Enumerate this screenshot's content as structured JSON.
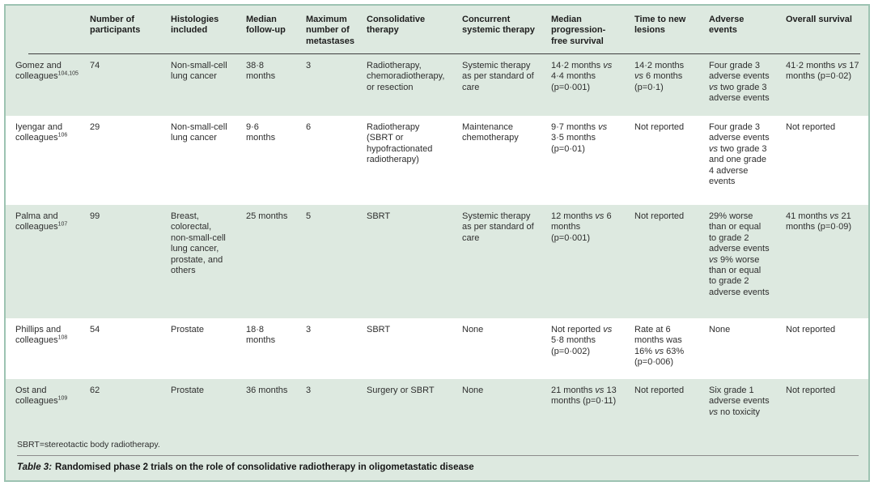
{
  "figure": {
    "columns": [
      {
        "label": ""
      },
      {
        "label": "Number of participants"
      },
      {
        "label": "Histologies included"
      },
      {
        "label": "Median follow-up"
      },
      {
        "label": "Maximum number of metastases"
      },
      {
        "label": "Consolidative therapy"
      },
      {
        "label": "Concurrent systemic therapy"
      },
      {
        "label": "Median progression-free survival"
      },
      {
        "label": "Time to new lesions"
      },
      {
        "label": "Adverse events"
      },
      {
        "label": "Overall survival"
      }
    ],
    "rows": [
      {
        "study": "Gomez and colleagues",
        "ref": "104,105",
        "cells": [
          "74",
          "Non-small-cell lung cancer",
          "38·8 months",
          "3",
          "Radiotherapy, chemoradiotherapy, or resection",
          "Systemic therapy as per standard of care",
          "14·2 months vs 4·4 months (p=0·001)",
          "14·2 months vs 6 months (p=0·1)",
          "Four grade 3 adverse events vs two grade 3 adverse events",
          "41·2 months vs 17 months (p=0·02)"
        ]
      },
      {
        "study": "Iyengar and colleagues",
        "ref": "106",
        "cells": [
          "29",
          "Non-small-cell lung cancer",
          "9·6 months",
          "6",
          "Radiotherapy (SBRT or hypofractionated radiotherapy)",
          "Maintenance chemotherapy",
          "9·7 months vs 3·5 months (p=0·01)",
          "Not reported",
          "Four grade 3 adverse events vs two grade 3 and one grade 4 adverse events",
          "Not reported"
        ]
      },
      {
        "study": "Palma and colleagues",
        "ref": "107",
        "cells": [
          "99",
          "Breast, colorectal, non-small-cell lung cancer, prostate, and others",
          "25 months",
          "5",
          "SBRT",
          "Systemic therapy as per standard of care",
          "12 months vs 6 months (p=0·001)",
          "Not reported",
          "29% worse than or equal to grade 2 adverse events vs 9% worse than or equal to grade 2 adverse events",
          "41 months vs 21 months (p=0·09)"
        ]
      },
      {
        "study": "Phillips and colleagues",
        "ref": "108",
        "cells": [
          "54",
          "Prostate",
          "18·8 months",
          "3",
          "SBRT",
          "None",
          "Not reported vs 5·8 months (p=0·002)",
          "Rate at 6 months was 16% vs 63% (p=0·006)",
          "None",
          "Not reported"
        ]
      },
      {
        "study": "Ost and colleagues",
        "ref": "109",
        "cells": [
          "62",
          "Prostate",
          "36 months",
          "3",
          "Surgery or SBRT",
          "None",
          "21 months vs 13 months (p=0·11)",
          "Not reported",
          "Six grade 1 adverse events vs no toxicity",
          "Not reported"
        ]
      }
    ],
    "footnote": "SBRT=stereotactic body radiotherapy.",
    "caption": {
      "label": "Table 3:",
      "text": "Randomised phase 2 trials on the role of consolidative radiotherapy in oligometastatic disease"
    }
  },
  "colors": {
    "band_green": "#dde9e0",
    "border_teal": "#9dc3b2",
    "header_rule": "#3f3f3f",
    "caption_rule": "#8c8c8c",
    "text": "#2e2e2e"
  }
}
